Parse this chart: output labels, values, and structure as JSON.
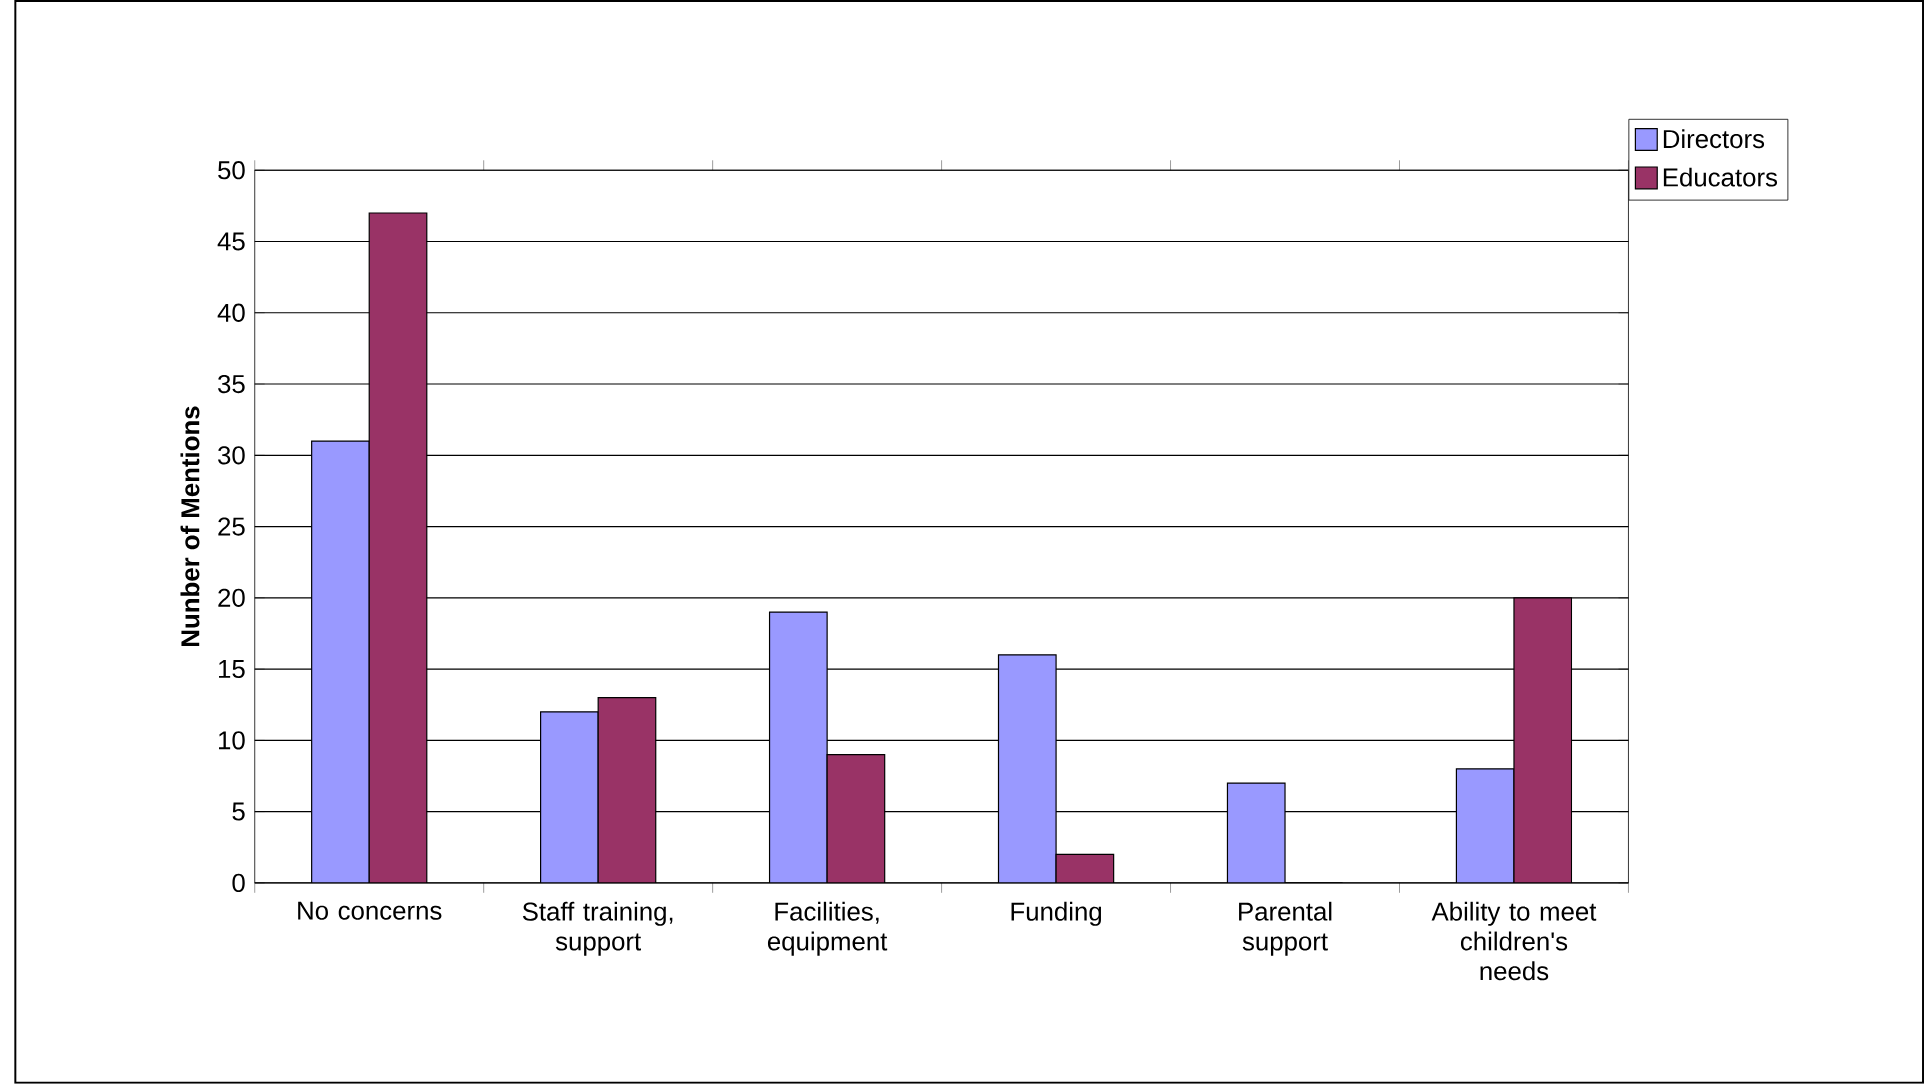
{
  "chart_data": {
    "type": "bar",
    "ylabel": "Nunber of Mentions",
    "categories": [
      "No concerns",
      "Staff training, support",
      "Facilities, equipment",
      "Funding",
      "Parental support",
      "Ability to meet children's needs"
    ],
    "series": [
      {
        "name": "Directors",
        "color": "#9999ff",
        "values": [
          31,
          12,
          19,
          16,
          7,
          8
        ]
      },
      {
        "name": "Educators",
        "color": "#993366",
        "values": [
          47,
          13,
          9,
          2,
          0,
          20
        ]
      }
    ],
    "ylim": [
      0,
      50
    ],
    "yticks": [
      0,
      5,
      10,
      15,
      20,
      25,
      30,
      35,
      40,
      45,
      50
    ],
    "grid": "y",
    "legend": "top right"
  }
}
